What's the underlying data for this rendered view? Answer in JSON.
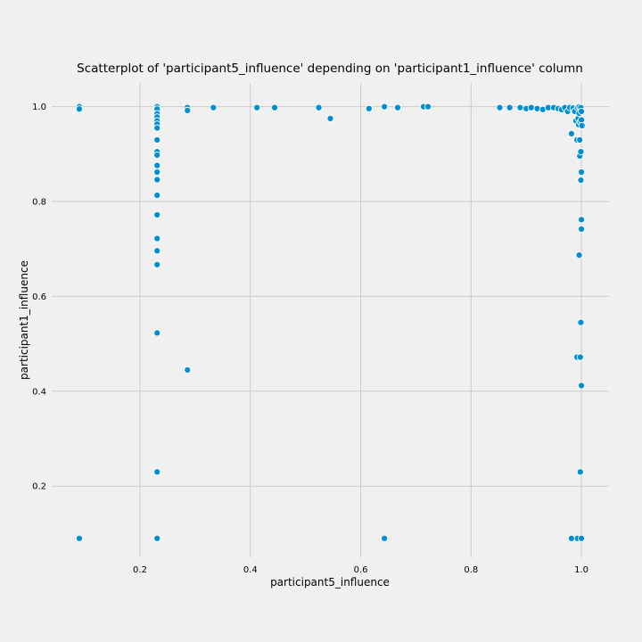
{
  "chart_data": {
    "type": "scatter",
    "title": "Scatterplot of 'participant5_influence' depending on 'participant1_influence' column",
    "xlabel": "participant5_influence",
    "ylabel": "participant1_influence",
    "xlim": [
      0.04,
      1.05
    ],
    "ylim": [
      0.05,
      1.05
    ],
    "xticks": [
      0.2,
      0.4,
      0.6,
      0.8,
      1.0
    ],
    "xtick_labels": [
      "0.2",
      "0.4",
      "0.6",
      "0.8",
      "1.0"
    ],
    "yticks": [
      0.2,
      0.4,
      0.6,
      0.8,
      1.0
    ],
    "ytick_labels": [
      "0.2",
      "0.4",
      "0.6",
      "0.8",
      "1.0"
    ],
    "grid": true,
    "marker_color": "#008fd5",
    "points": [
      [
        0.09,
        1.0
      ],
      [
        0.09,
        0.995
      ],
      [
        0.09,
        0.09
      ],
      [
        0.231,
        1.0
      ],
      [
        0.231,
        0.995
      ],
      [
        0.231,
        0.985
      ],
      [
        0.231,
        0.978
      ],
      [
        0.231,
        0.97
      ],
      [
        0.231,
        0.963
      ],
      [
        0.231,
        0.955
      ],
      [
        0.231,
        0.93
      ],
      [
        0.231,
        0.905
      ],
      [
        0.231,
        0.898
      ],
      [
        0.231,
        0.876
      ],
      [
        0.231,
        0.862
      ],
      [
        0.231,
        0.846
      ],
      [
        0.231,
        0.813
      ],
      [
        0.231,
        0.772
      ],
      [
        0.231,
        0.722
      ],
      [
        0.231,
        0.696
      ],
      [
        0.231,
        0.667
      ],
      [
        0.231,
        0.523
      ],
      [
        0.231,
        0.23
      ],
      [
        0.231,
        0.09
      ],
      [
        0.286,
        0.998
      ],
      [
        0.286,
        0.992
      ],
      [
        0.286,
        0.445
      ],
      [
        0.333,
        0.998
      ],
      [
        0.412,
        0.998
      ],
      [
        0.444,
        0.998
      ],
      [
        0.524,
        0.998
      ],
      [
        0.545,
        0.975
      ],
      [
        0.615,
        0.996
      ],
      [
        0.643,
        1.0
      ],
      [
        0.643,
        0.09
      ],
      [
        0.667,
        0.998
      ],
      [
        0.714,
        1.0
      ],
      [
        0.722,
        1.0
      ],
      [
        0.852,
        0.998
      ],
      [
        0.87,
        0.998
      ],
      [
        0.889,
        0.998
      ],
      [
        0.9,
        0.996
      ],
      [
        0.909,
        0.998
      ],
      [
        0.92,
        0.996
      ],
      [
        0.93,
        0.994
      ],
      [
        0.94,
        0.998
      ],
      [
        0.95,
        0.998
      ],
      [
        0.958,
        0.996
      ],
      [
        0.964,
        0.994
      ],
      [
        0.97,
        0.998
      ],
      [
        0.975,
        0.99
      ],
      [
        0.979,
        0.998
      ],
      [
        0.982,
        0.943
      ],
      [
        0.985,
        0.997
      ],
      [
        0.988,
        0.99
      ],
      [
        0.99,
        0.97
      ],
      [
        0.992,
        0.93
      ],
      [
        0.993,
        0.998
      ],
      [
        0.994,
        0.975
      ],
      [
        0.995,
        0.962
      ],
      [
        0.996,
        1.0
      ],
      [
        0.996,
        0.986
      ],
      [
        0.997,
        0.93
      ],
      [
        0.997,
        0.896
      ],
      [
        0.998,
        0.968
      ],
      [
        0.998,
        0.845
      ],
      [
        0.999,
        0.998
      ],
      [
        0.999,
        0.905
      ],
      [
        1.0,
        0.99
      ],
      [
        1.0,
        0.972
      ],
      [
        1.0,
        0.862
      ],
      [
        1.0,
        0.762
      ],
      [
        1.0,
        0.742
      ],
      [
        0.996,
        0.687
      ],
      [
        0.999,
        0.545
      ],
      [
        0.992,
        0.472
      ],
      [
        0.998,
        0.472
      ],
      [
        1.0,
        0.412
      ],
      [
        0.998,
        0.23
      ],
      [
        0.982,
        0.09
      ],
      [
        0.993,
        0.09
      ],
      [
        1.0,
        0.09
      ],
      [
        0.999,
        0.845
      ],
      [
        1.001,
        0.96
      ]
    ]
  }
}
